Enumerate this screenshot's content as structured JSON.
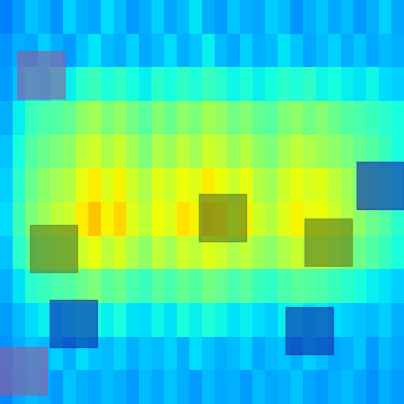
{
  "chart_data": {
    "type": "heatmap",
    "color": "jet",
    "tick_labels": false,
    "value_range": [
      0,
      1
    ],
    "cells": [
      [
        0.25,
        0.28,
        0.32,
        0.3,
        0.27,
        0.33,
        0.3,
        0.29,
        0.34,
        0.31,
        0.28,
        0.3,
        0.33,
        0.29,
        0.31,
        0.35,
        0.3,
        0.28,
        0.32,
        0.3,
        0.29,
        0.33,
        0.31,
        0.27,
        0.3,
        0.32,
        0.29,
        0.31,
        0.28,
        0.3,
        0.33,
        0.29
      ],
      [
        0.27,
        0.3,
        0.29,
        0.33,
        0.3,
        0.28,
        0.32,
        0.35,
        0.31,
        0.3,
        0.33,
        0.29,
        0.31,
        0.34,
        0.3,
        0.32,
        0.36,
        0.31,
        0.29,
        0.33,
        0.3,
        0.31,
        0.35,
        0.32,
        0.29,
        0.31,
        0.33,
        0.3,
        0.32,
        0.29,
        0.31,
        0.3
      ],
      [
        0.28,
        0.32,
        0.35,
        0.34,
        0.37,
        0.36,
        0.4,
        0.42,
        0.39,
        0.41,
        0.38,
        0.36,
        0.4,
        0.38,
        0.41,
        0.39,
        0.42,
        0.4,
        0.37,
        0.39,
        0.36,
        0.38,
        0.4,
        0.39,
        0.41,
        0.37,
        0.38,
        0.36,
        0.35,
        0.37,
        0.34,
        0.33
      ],
      [
        0.3,
        0.36,
        0.42,
        0.44,
        0.45,
        0.47,
        0.52,
        0.55,
        0.5,
        0.53,
        0.49,
        0.46,
        0.51,
        0.48,
        0.52,
        0.5,
        0.55,
        0.53,
        0.49,
        0.51,
        0.47,
        0.46,
        0.5,
        0.52,
        0.49,
        0.51,
        0.48,
        0.45,
        0.44,
        0.42,
        0.4,
        0.38
      ],
      [
        0.32,
        0.38,
        0.45,
        0.48,
        0.5,
        0.52,
        0.58,
        0.6,
        0.56,
        0.59,
        0.55,
        0.5,
        0.56,
        0.54,
        0.58,
        0.55,
        0.6,
        0.58,
        0.54,
        0.57,
        0.52,
        0.5,
        0.55,
        0.58,
        0.56,
        0.54,
        0.52,
        0.5,
        0.47,
        0.45,
        0.42,
        0.38
      ],
      [
        0.33,
        0.4,
        0.48,
        0.52,
        0.55,
        0.57,
        0.63,
        0.66,
        0.62,
        0.65,
        0.6,
        0.56,
        0.62,
        0.6,
        0.64,
        0.62,
        0.66,
        0.64,
        0.6,
        0.63,
        0.57,
        0.55,
        0.6,
        0.63,
        0.61,
        0.62,
        0.58,
        0.55,
        0.5,
        0.47,
        0.44,
        0.4
      ],
      [
        0.34,
        0.42,
        0.5,
        0.54,
        0.58,
        0.6,
        0.66,
        0.7,
        0.65,
        0.68,
        0.62,
        0.58,
        0.64,
        0.62,
        0.67,
        0.65,
        0.7,
        0.68,
        0.62,
        0.65,
        0.6,
        0.57,
        0.62,
        0.65,
        0.63,
        0.64,
        0.6,
        0.56,
        0.52,
        0.48,
        0.45,
        0.4
      ],
      [
        0.32,
        0.4,
        0.46,
        0.5,
        0.53,
        0.55,
        0.6,
        0.63,
        0.58,
        0.61,
        0.56,
        0.52,
        0.58,
        0.55,
        0.6,
        0.58,
        0.62,
        0.6,
        0.56,
        0.58,
        0.54,
        0.52,
        0.56,
        0.59,
        0.57,
        0.58,
        0.54,
        0.51,
        0.48,
        0.45,
        0.42,
        0.38
      ],
      [
        0.3,
        0.35,
        0.4,
        0.42,
        0.44,
        0.45,
        0.48,
        0.5,
        0.46,
        0.48,
        0.44,
        0.42,
        0.46,
        0.44,
        0.47,
        0.45,
        0.49,
        0.47,
        0.44,
        0.46,
        0.42,
        0.41,
        0.44,
        0.46,
        0.45,
        0.44,
        0.42,
        0.4,
        0.38,
        0.36,
        0.35,
        0.33
      ],
      [
        0.28,
        0.31,
        0.34,
        0.36,
        0.35,
        0.37,
        0.39,
        0.38,
        0.36,
        0.38,
        0.35,
        0.34,
        0.37,
        0.35,
        0.38,
        0.36,
        0.39,
        0.37,
        0.35,
        0.36,
        0.34,
        0.33,
        0.36,
        0.37,
        0.35,
        0.36,
        0.34,
        0.33,
        0.32,
        0.31,
        0.33,
        0.3
      ],
      [
        0.27,
        0.3,
        0.32,
        0.31,
        0.33,
        0.3,
        0.34,
        0.32,
        0.31,
        0.33,
        0.3,
        0.32,
        0.31,
        0.33,
        0.3,
        0.34,
        0.32,
        0.3,
        0.31,
        0.33,
        0.29,
        0.31,
        0.32,
        0.3,
        0.33,
        0.31,
        0.29,
        0.3,
        0.32,
        0.28,
        0.31,
        0.29
      ],
      [
        0.26,
        0.29,
        0.31,
        0.3,
        0.28,
        0.32,
        0.3,
        0.29,
        0.31,
        0.3,
        0.28,
        0.31,
        0.29,
        0.32,
        0.3,
        0.28,
        0.31,
        0.29,
        0.3,
        0.28,
        0.31,
        0.29,
        0.3,
        0.32,
        0.29,
        0.28,
        0.3,
        0.31,
        0.29,
        0.27,
        0.3,
        0.28
      ]
    ]
  }
}
